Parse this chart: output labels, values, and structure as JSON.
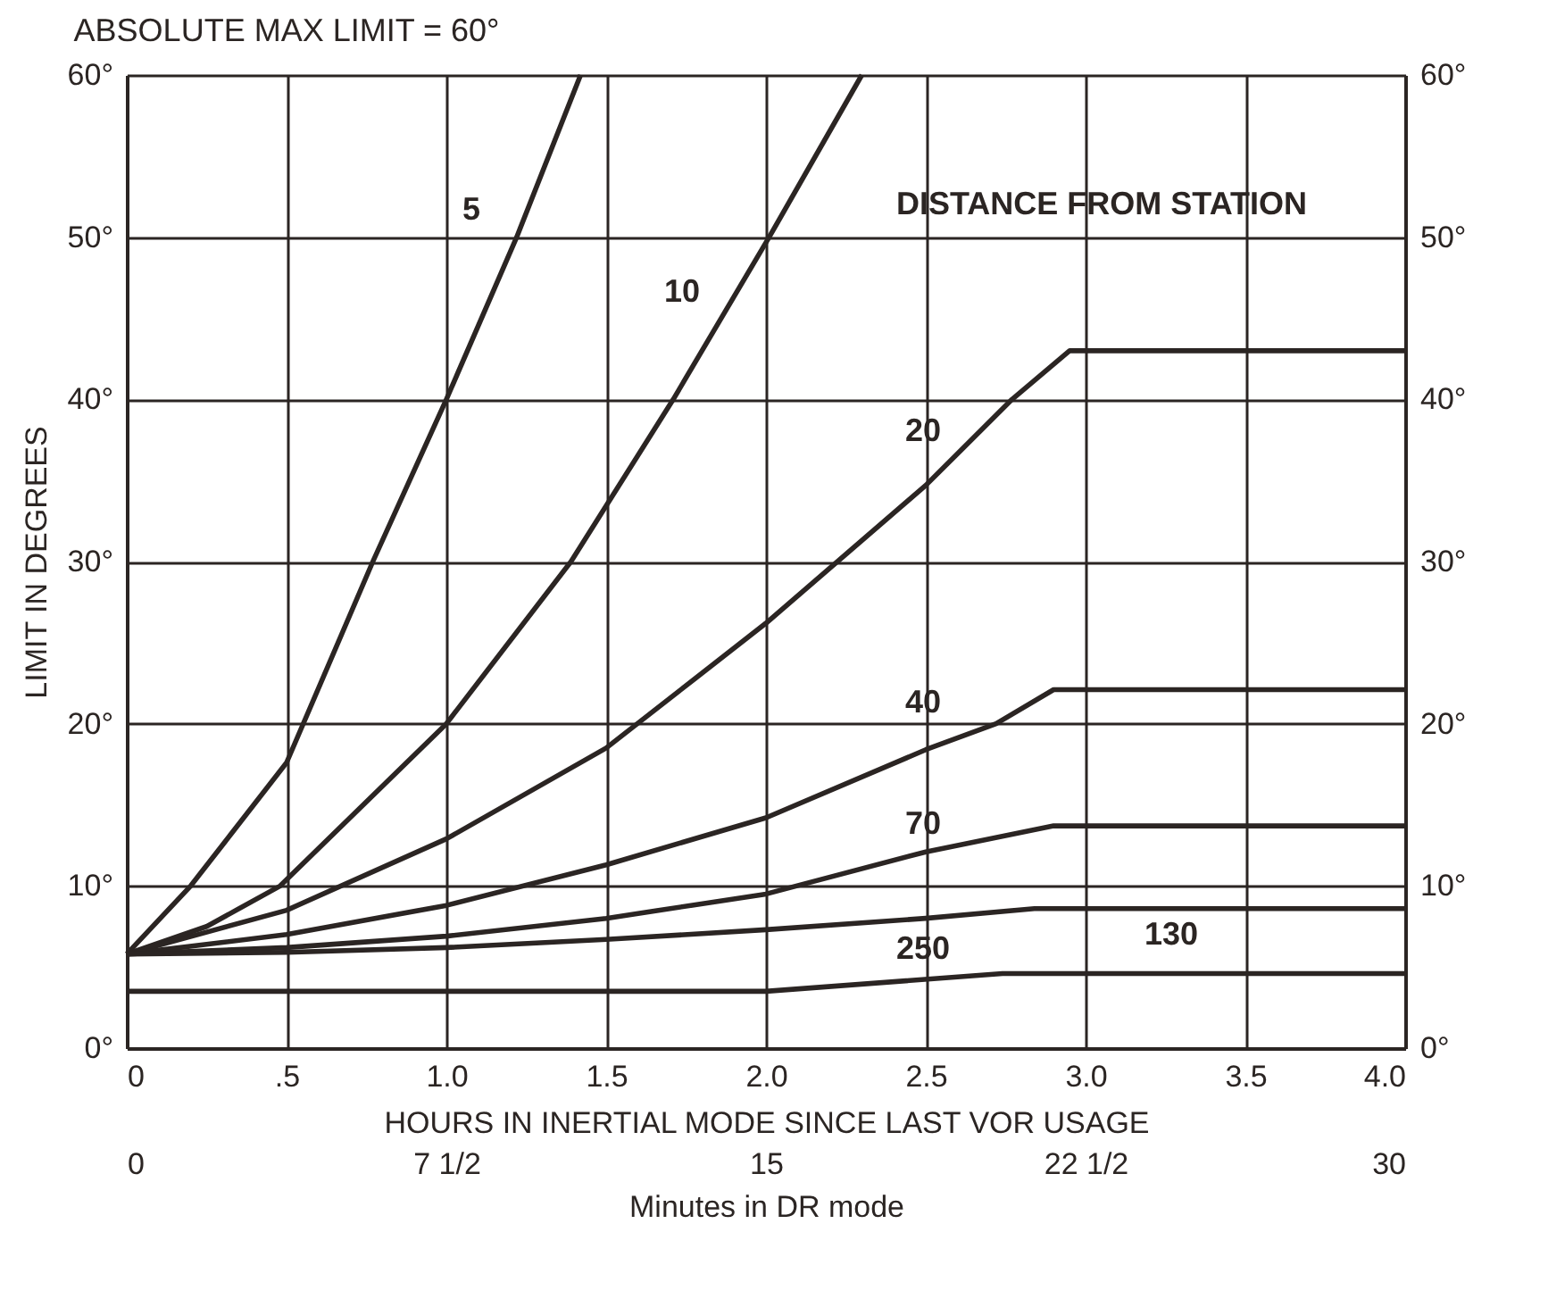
{
  "chart_data": {
    "type": "line",
    "title": "ABSOLUTE MAX LIMIT = 60°",
    "xlabel": "HOURS IN INERTIAL MODE SINCE LAST VOR USAGE",
    "ylabel": "LIMIT IN DEGREES",
    "x2label": "Minutes in DR mode",
    "xlim": [
      0,
      4
    ],
    "xticks": [
      0,
      {
        "value": 0.5,
        "label": ".5"
      },
      {
        "value": 1,
        "label": "1.0"
      },
      1.5,
      {
        "value": 2,
        "label": "2.0"
      },
      2.5,
      {
        "value": 3,
        "label": "3.0"
      },
      3.5,
      {
        "value": 4,
        "label": "4.0"
      }
    ],
    "x2lim": [
      0,
      30
    ],
    "x2ticks": [
      {
        "value": 0,
        "label": "0"
      },
      {
        "value": 7.5,
        "label": "7 1/2"
      },
      {
        "value": 15,
        "label": "15"
      },
      {
        "value": 22.5,
        "label": "22 1/2"
      },
      {
        "value": 30,
        "label": "30"
      }
    ],
    "ylim": [
      0,
      60
    ],
    "yticks": [
      {
        "value": 0,
        "label": "0°"
      },
      {
        "value": 10,
        "label": "10°"
      },
      {
        "value": 20,
        "label": "20°"
      },
      {
        "value": 30,
        "label": "30°"
      },
      {
        "value": 40,
        "label": "40°"
      },
      {
        "value": 50,
        "label": "50°"
      },
      {
        "value": 60,
        "label": "60°"
      }
    ],
    "y2lim": [
      0,
      60
    ],
    "y2ticks": [
      {
        "value": 0,
        "label": "0°"
      },
      {
        "value": 10,
        "label": "10°"
      },
      {
        "value": 20,
        "label": "20°"
      },
      {
        "value": 30,
        "label": "30°"
      },
      {
        "value": 40,
        "label": "40°"
      },
      {
        "value": 50,
        "label": "50°"
      },
      {
        "value": 60,
        "label": "60°"
      }
    ],
    "grid": true,
    "marker": "none",
    "line_style": "solid",
    "series": [
      {
        "name": "5",
        "color": "#2b2523",
        "x": [
          0,
          0.2,
          0.5,
          0.77,
          1.0,
          1.22,
          1.42
        ],
        "values": [
          5.8,
          10,
          17.6,
          30,
          40,
          50,
          60
        ]
      },
      {
        "name": "10",
        "color": "#2b2523",
        "x": [
          0,
          0.25,
          0.48,
          1.0,
          1.39,
          1.71,
          2.01,
          2.3
        ],
        "values": [
          5.8,
          7.5,
          10,
          20,
          30,
          40,
          50,
          60
        ]
      },
      {
        "name": "20",
        "color": "#2b2523",
        "x": [
          0,
          0.5,
          1.0,
          1.5,
          2.0,
          2.5,
          2.77,
          2.95,
          4.0
        ],
        "values": [
          5.8,
          8.5,
          12.9,
          18.5,
          26.2,
          34.7,
          40,
          43,
          43
        ]
      },
      {
        "name": "40",
        "color": "#2b2523",
        "x": [
          0,
          0.5,
          1.0,
          1.5,
          2.0,
          2.5,
          2.72,
          2.9,
          4.0
        ],
        "values": [
          5.8,
          7,
          8.8,
          11.3,
          14.2,
          18.4,
          20,
          22.1,
          22.1
        ]
      },
      {
        "name": "70",
        "color": "#2b2523",
        "x": [
          0,
          0.5,
          1.0,
          1.5,
          2.0,
          2.5,
          2.9,
          4.0
        ],
        "values": [
          5.8,
          6.2,
          6.9,
          8,
          9.5,
          12.1,
          13.7,
          13.7
        ]
      },
      {
        "name": "130",
        "color": "#2b2523",
        "x": [
          0,
          0.5,
          1.0,
          1.5,
          2.0,
          2.5,
          2.84,
          4.0
        ],
        "values": [
          5.8,
          5.9,
          6.2,
          6.7,
          7.3,
          8,
          8.6,
          8.6
        ]
      },
      {
        "name": "250",
        "color": "#2b2523",
        "x": [
          0,
          2.0,
          2.74,
          4.0
        ],
        "values": [
          3.5,
          3.5,
          4.6,
          4.6
        ]
      }
    ],
    "annotations": [
      "DISTANCE FROM STATION"
    ]
  }
}
